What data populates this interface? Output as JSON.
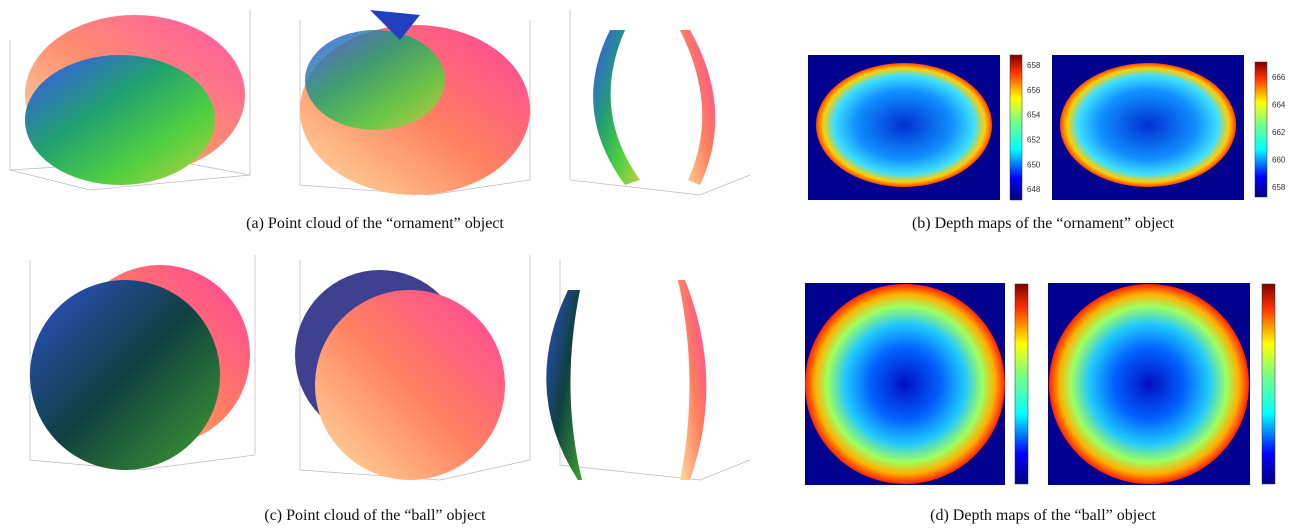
{
  "subfigures": [
    {
      "caption": "(a)  Point cloud of the “ornament” object"
    },
    {
      "caption": "(b)  Depth maps of the “ornament” object",
      "colorbars": [
        {
          "ticks": [
            658,
            656,
            654,
            652,
            650,
            648
          ]
        },
        {
          "ticks": [
            666,
            664,
            662,
            660,
            658
          ]
        }
      ]
    },
    {
      "caption": "(c)  Point cloud of the “ball” object"
    },
    {
      "caption": "(d)  Depth maps of the “ball” object"
    }
  ]
}
